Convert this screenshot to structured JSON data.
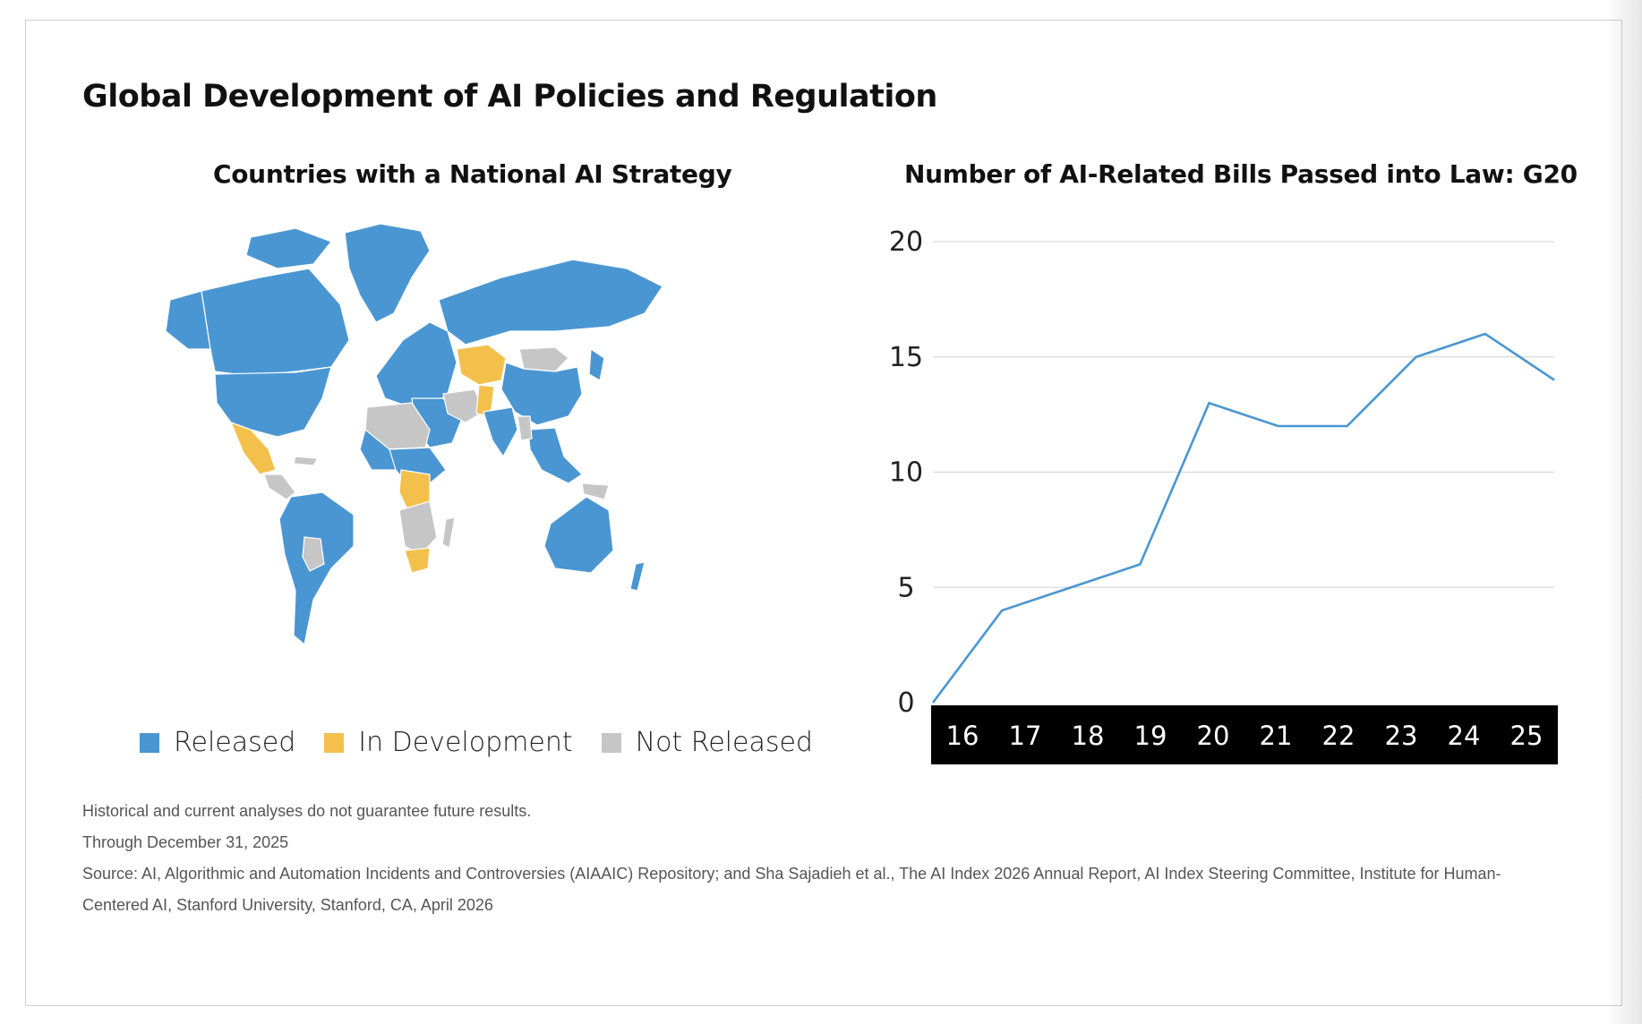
{
  "title": "Global Development of AI Policies and Regulation",
  "map": {
    "title": "Countries with a National AI Strategy",
    "colors": {
      "released": "#4a96d2",
      "in_development": "#f4c04c",
      "not_released": "#c6c6c6"
    },
    "legend": [
      {
        "label": "Released",
        "color": "#4a96d2"
      },
      {
        "label": "In Development",
        "color": "#f4c04c"
      },
      {
        "label": "Not Released",
        "color": "#c6c6c6"
      }
    ]
  },
  "chart_data": {
    "type": "line",
    "title": "Number of AI-Related Bills Passed into Law: G20",
    "categories": [
      "16",
      "17",
      "18",
      "19",
      "20",
      "21",
      "22",
      "23",
      "24",
      "25"
    ],
    "series": [
      {
        "values": [
          0,
          4,
          5,
          6,
          13,
          12,
          12,
          15,
          16,
          14
        ]
      }
    ],
    "ylim": [
      0,
      20
    ],
    "yticks": [
      0,
      5,
      10,
      15,
      20
    ],
    "grid": true,
    "line_color": "#4a96d2",
    "xaxis_background": "#000000"
  },
  "footnotes": [
    "Historical and current analyses do not guarantee future results.",
    "Through December 31, 2025",
    "Source: AI, Algorithmic and Automation Incidents and Controversies (AIAAIC) Repository; and Sha Sajadieh et al., The AI Index 2026 Annual Report, AI Index Steering Committee, Institute for Human-",
    "Centered AI, Stanford University, Stanford, CA, April 2026"
  ]
}
